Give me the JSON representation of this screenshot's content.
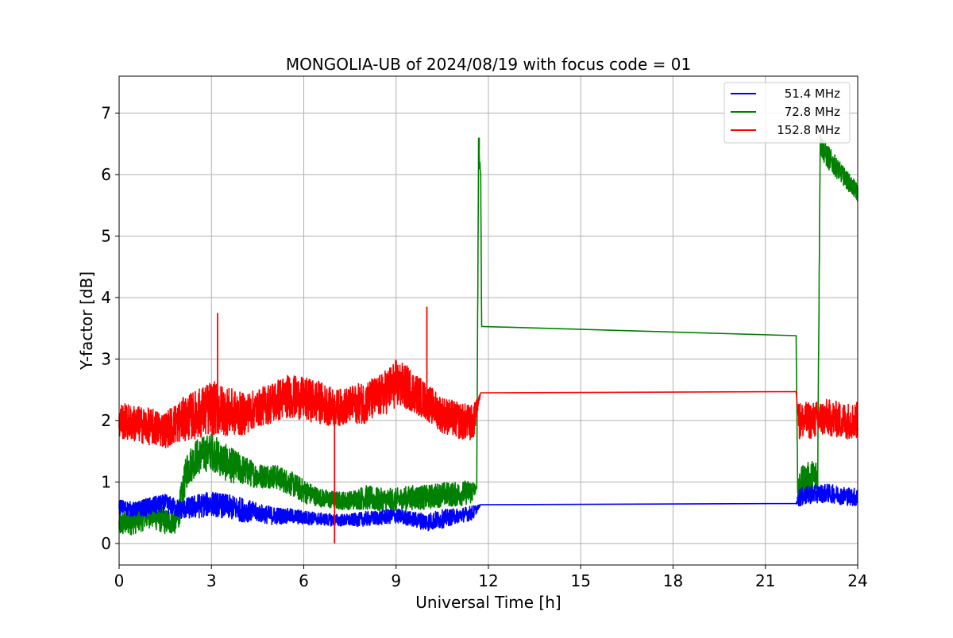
{
  "chart_data": {
    "type": "line",
    "title": "MONGOLIA-UB of 2024/08/19 with focus code = 01",
    "xlabel": "Universal Time [h]",
    "ylabel": "Y-factor [dB]",
    "xlim": [
      0,
      24
    ],
    "ylim": [
      -0.35,
      7.6
    ],
    "xticks": [
      0,
      3,
      6,
      9,
      12,
      15,
      18,
      21,
      24
    ],
    "xtick_labels": [
      "0",
      "3",
      "6",
      "9",
      "12",
      "15",
      "18",
      "21",
      "24"
    ],
    "yticks": [
      0,
      1,
      2,
      3,
      4,
      5,
      6,
      7
    ],
    "ytick_labels": [
      "0",
      "1",
      "2",
      "3",
      "4",
      "5",
      "6",
      "7"
    ],
    "grid": true,
    "legend_position": "top-right",
    "series": [
      {
        "name": "51.4 MHz",
        "color": "#0000ff",
        "x": [
          0,
          0.5,
          1,
          1.5,
          2,
          2.5,
          3,
          3.5,
          4,
          4.5,
          5,
          5.5,
          6,
          6.5,
          7,
          7.5,
          8,
          8.5,
          9,
          9.5,
          10,
          10.5,
          11,
          11.5,
          11.75,
          22.0,
          22.1,
          22.5,
          23,
          23.5,
          24
        ],
        "y": [
          0.6,
          0.55,
          0.6,
          0.65,
          0.55,
          0.6,
          0.65,
          0.6,
          0.55,
          0.5,
          0.45,
          0.45,
          0.42,
          0.4,
          0.38,
          0.38,
          0.4,
          0.42,
          0.45,
          0.4,
          0.35,
          0.4,
          0.45,
          0.5,
          0.63,
          0.65,
          0.75,
          0.8,
          0.82,
          0.78,
          0.75
        ],
        "noise": [
          0.12,
          0.12,
          0.15,
          0.15,
          0.15,
          0.2,
          0.2,
          0.2,
          0.2,
          0.15,
          0.15,
          0.12,
          0.12,
          0.1,
          0.1,
          0.1,
          0.12,
          0.12,
          0.12,
          0.12,
          0.15,
          0.15,
          0.12,
          0.12,
          0,
          0,
          0.15,
          0.15,
          0.15,
          0.15,
          0.15
        ]
      },
      {
        "name": "72.8 MHz",
        "color": "#008000",
        "x": [
          0,
          0.5,
          1,
          1.5,
          1.9,
          2.2,
          2.5,
          3,
          3.5,
          4,
          4.5,
          5,
          5.5,
          6,
          6.5,
          7,
          7.5,
          8,
          8.5,
          9,
          9.5,
          10,
          10.5,
          11,
          11.5,
          11.62,
          11.68,
          11.75,
          11.78,
          22.0,
          22.05,
          22.3,
          22.7,
          22.78,
          23,
          23.5,
          24
        ],
        "y": [
          0.3,
          0.4,
          0.5,
          0.35,
          0.4,
          1.2,
          1.4,
          1.5,
          1.3,
          1.2,
          1.1,
          1.1,
          1.0,
          0.85,
          0.75,
          0.7,
          0.7,
          0.75,
          0.7,
          0.7,
          0.75,
          0.75,
          0.8,
          0.8,
          0.85,
          0.9,
          6.4,
          6.0,
          3.53,
          3.38,
          0.9,
          1.0,
          1.1,
          6.5,
          6.3,
          6.0,
          5.7
        ],
        "noise": [
          0.2,
          0.25,
          0.25,
          0.2,
          0.25,
          0.3,
          0.3,
          0.3,
          0.3,
          0.25,
          0.2,
          0.2,
          0.2,
          0.2,
          0.15,
          0.15,
          0.15,
          0.2,
          0.2,
          0.2,
          0.2,
          0.2,
          0.2,
          0.2,
          0.2,
          0,
          0.2,
          0,
          0,
          0,
          0.3,
          0.3,
          0.3,
          0.2,
          0.2,
          0.15,
          0.15
        ]
      },
      {
        "name": "152.8 MHz",
        "color": "#ff0000",
        "x": [
          0,
          0.5,
          1,
          1.5,
          2,
          2.5,
          3,
          3.5,
          4,
          4.5,
          5,
          5.5,
          6,
          6.5,
          7,
          7.5,
          8,
          8.5,
          9,
          9.5,
          10,
          10.5,
          11,
          11.5,
          11.75,
          22.0,
          22.1,
          22.5,
          23,
          23.5,
          24
        ],
        "y": [
          2.0,
          1.95,
          1.9,
          1.85,
          2.0,
          2.1,
          2.2,
          2.15,
          2.1,
          2.2,
          2.3,
          2.4,
          2.35,
          2.3,
          2.2,
          2.25,
          2.3,
          2.4,
          2.6,
          2.5,
          2.3,
          2.1,
          2.0,
          1.95,
          2.45,
          2.47,
          2.0,
          2.0,
          2.05,
          2.0,
          2.0
        ],
        "noise": [
          0.3,
          0.3,
          0.3,
          0.3,
          0.35,
          0.4,
          0.45,
          0.4,
          0.35,
          0.3,
          0.35,
          0.35,
          0.35,
          0.35,
          0.3,
          0.3,
          0.35,
          0.35,
          0.4,
          0.35,
          0.3,
          0.3,
          0.3,
          0.3,
          0,
          0,
          0.3,
          0.3,
          0.3,
          0.3,
          0.3
        ]
      }
    ],
    "annotations": [
      {
        "series": "152.8 MHz",
        "x": 7.0,
        "y": 0.0,
        "note": "dropout spike"
      },
      {
        "series": "152.8 MHz",
        "x": 3.2,
        "y": 3.75,
        "note": "peak"
      },
      {
        "series": "152.8 MHz",
        "x": 10.0,
        "y": 3.85,
        "note": "peak"
      },
      {
        "series": "72.8 MHz",
        "x": 11.7,
        "y": 6.6,
        "note": "peak"
      }
    ]
  }
}
